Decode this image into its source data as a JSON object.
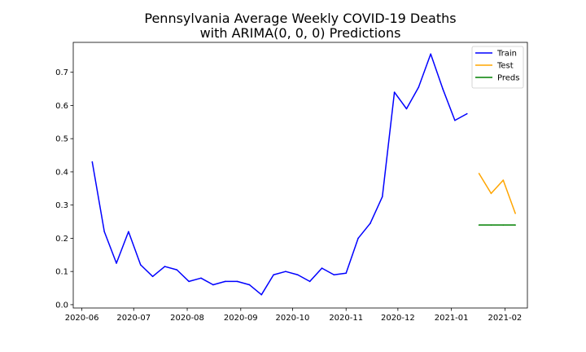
{
  "chart_data": {
    "type": "line",
    "title": "Pennsylvania Average Weekly COVID-19 Deaths",
    "subtitle": "with ARIMA(0, 0, 0) Predictions",
    "xlabel": "",
    "ylabel": "",
    "xlim": [
      "2020-05-27",
      "2021-02-14"
    ],
    "ylim": [
      -0.01,
      0.79
    ],
    "x_ticks": [
      "2020-06-01",
      "2020-07-01",
      "2020-08-01",
      "2020-09-01",
      "2020-10-01",
      "2020-11-01",
      "2020-12-01",
      "2021-01-01",
      "2021-02-01"
    ],
    "x_tick_labels": [
      "2020-06",
      "2020-07",
      "2020-08",
      "2020-09",
      "2020-10",
      "2020-11",
      "2020-12",
      "2021-01",
      "2021-02"
    ],
    "y_ticks": [
      0.0,
      0.1,
      0.2,
      0.3,
      0.4,
      0.5,
      0.6,
      0.7
    ],
    "y_tick_labels": [
      "0.0",
      "0.1",
      "0.2",
      "0.3",
      "0.4",
      "0.5",
      "0.6",
      "0.7"
    ],
    "grid": false,
    "legend_position": "top-right",
    "series": [
      {
        "name": "Train",
        "color": "#0000ff",
        "x": [
          "2020-06-07",
          "2020-06-14",
          "2020-06-21",
          "2020-06-28",
          "2020-07-05",
          "2020-07-12",
          "2020-07-19",
          "2020-07-26",
          "2020-08-02",
          "2020-08-09",
          "2020-08-16",
          "2020-08-23",
          "2020-08-30",
          "2020-09-06",
          "2020-09-13",
          "2020-09-20",
          "2020-09-27",
          "2020-10-04",
          "2020-10-11",
          "2020-10-18",
          "2020-10-25",
          "2020-11-01",
          "2020-11-08",
          "2020-11-15",
          "2020-11-22",
          "2020-11-29",
          "2020-12-06",
          "2020-12-13",
          "2020-12-20",
          "2020-12-27",
          "2021-01-03",
          "2021-01-10"
        ],
        "values": [
          0.43,
          0.22,
          0.125,
          0.22,
          0.12,
          0.085,
          0.115,
          0.105,
          0.07,
          0.08,
          0.06,
          0.07,
          0.07,
          0.06,
          0.03,
          0.09,
          0.1,
          0.09,
          0.07,
          0.11,
          0.09,
          0.095,
          0.2,
          0.245,
          0.325,
          0.64,
          0.59,
          0.655,
          0.755,
          0.65,
          0.555,
          0.575
        ]
      },
      {
        "name": "Test",
        "color": "#ffa500",
        "x": [
          "2021-01-17",
          "2021-01-24",
          "2021-01-31",
          "2021-02-07"
        ],
        "values": [
          0.395,
          0.335,
          0.375,
          0.275
        ]
      },
      {
        "name": "Preds",
        "color": "#008000",
        "x": [
          "2021-01-17",
          "2021-01-24",
          "2021-01-31",
          "2021-02-07"
        ],
        "values": [
          0.24,
          0.24,
          0.24,
          0.24
        ]
      }
    ]
  }
}
